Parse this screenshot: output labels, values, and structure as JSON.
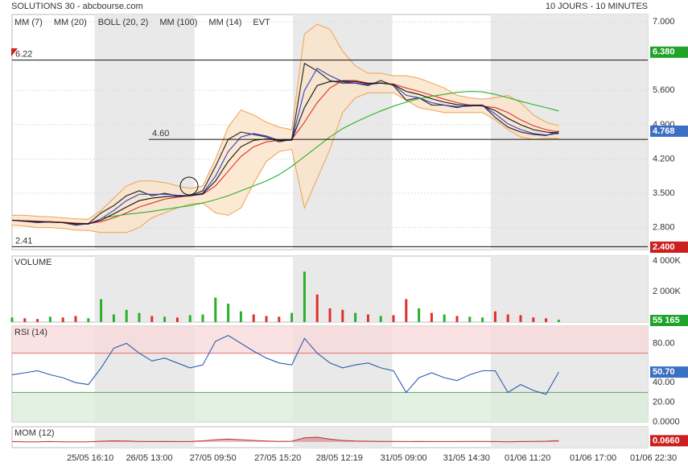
{
  "header": {
    "title": "SOLUTIONS 30 - abcbourse.com",
    "period": "10 JOURS - 10 MINUTES"
  },
  "chart_data": [
    {
      "type": "line",
      "events_label": "EVT",
      "xlim": [
        0,
        100
      ],
      "ylim": [
        2.35,
        7.15
      ],
      "yticks": [
        {
          "value": 7,
          "label": "7.000"
        },
        {
          "value": 5.6,
          "label": "5.600"
        },
        {
          "value": 4.9,
          "label": "4.900"
        },
        {
          "value": 4.2,
          "label": "4.200"
        },
        {
          "value": 3.5,
          "label": "3.500"
        },
        {
          "value": 2.8,
          "label": "2.800"
        }
      ],
      "grid": true,
      "shaded": [
        [
          13,
          28.7
        ],
        [
          44.2,
          59.8
        ],
        [
          75.3,
          100
        ]
      ],
      "x": [
        0,
        2,
        4,
        6,
        8,
        10,
        12,
        14,
        16,
        18,
        20,
        22,
        24,
        26,
        28,
        30,
        32,
        34,
        36,
        38,
        40,
        42,
        44,
        46,
        48,
        50,
        52,
        54,
        56,
        58,
        60,
        62,
        64,
        66,
        68,
        70,
        72,
        74,
        76,
        78,
        80,
        82,
        84,
        86
      ],
      "close": {
        "color": "#3a3a3a",
        "values": [
          2.95,
          2.93,
          2.9,
          2.92,
          2.9,
          2.85,
          2.88,
          3.1,
          3.25,
          3.45,
          3.55,
          3.45,
          3.5,
          3.45,
          3.45,
          3.55,
          4.05,
          4.6,
          4.75,
          4.7,
          4.65,
          4.55,
          4.6,
          6.15,
          6.0,
          5.8,
          5.75,
          5.75,
          5.7,
          5.8,
          5.7,
          5.4,
          5.45,
          5.3,
          5.3,
          5.25,
          5.3,
          5.3,
          5.05,
          4.85,
          4.75,
          4.7,
          4.68,
          4.77
        ]
      },
      "series": [
        {
          "name": "MM (7)",
          "color": "#2b3fcf",
          "values": [
            2.95,
            2.93,
            2.91,
            2.91,
            2.9,
            2.87,
            2.87,
            2.98,
            3.15,
            3.35,
            3.48,
            3.48,
            3.48,
            3.46,
            3.45,
            3.5,
            3.85,
            4.35,
            4.65,
            4.72,
            4.67,
            4.58,
            4.58,
            5.6,
            6.05,
            5.9,
            5.78,
            5.75,
            5.72,
            5.75,
            5.72,
            5.5,
            5.45,
            5.35,
            5.3,
            5.27,
            5.28,
            5.3,
            5.12,
            4.92,
            4.8,
            4.72,
            4.69,
            4.72
          ]
        },
        {
          "name": "MM (20)",
          "color": "#e0302a",
          "values": [
            2.95,
            2.94,
            2.93,
            2.92,
            2.91,
            2.89,
            2.88,
            2.92,
            3.0,
            3.1,
            3.22,
            3.3,
            3.38,
            3.42,
            3.45,
            3.48,
            3.65,
            3.95,
            4.25,
            4.45,
            4.55,
            4.58,
            4.6,
            4.95,
            5.35,
            5.65,
            5.8,
            5.8,
            5.75,
            5.75,
            5.73,
            5.65,
            5.58,
            5.5,
            5.42,
            5.35,
            5.3,
            5.28,
            5.25,
            5.15,
            5.0,
            4.88,
            4.8,
            4.75
          ]
        },
        {
          "name": "BOLL (20, 2)",
          "color": "#f0a050",
          "fill": "#fbe3c8",
          "upper": [
            3.05,
            3.05,
            3.03,
            3.02,
            3.0,
            2.98,
            2.97,
            3.15,
            3.4,
            3.65,
            3.75,
            3.75,
            3.72,
            3.65,
            3.6,
            3.65,
            4.2,
            4.85,
            5.2,
            5.1,
            4.95,
            4.85,
            4.8,
            6.75,
            6.95,
            6.85,
            6.4,
            6.1,
            5.95,
            5.95,
            5.9,
            5.9,
            5.85,
            5.75,
            5.65,
            5.5,
            5.45,
            5.42,
            5.45,
            5.5,
            5.35,
            5.1,
            4.95,
            4.88
          ],
          "lower": [
            2.85,
            2.83,
            2.8,
            2.8,
            2.78,
            2.75,
            2.74,
            2.7,
            2.7,
            2.7,
            2.8,
            3.0,
            3.1,
            3.2,
            3.28,
            3.3,
            3.1,
            3.05,
            3.2,
            3.7,
            4.15,
            4.35,
            4.4,
            3.2,
            3.8,
            4.4,
            5.15,
            5.45,
            5.55,
            5.55,
            5.55,
            5.4,
            5.25,
            5.2,
            5.15,
            5.15,
            5.15,
            5.15,
            5.0,
            4.8,
            4.65,
            4.6,
            4.62,
            4.62
          ]
        },
        {
          "name": "MM (100)",
          "color": "#2bb02b",
          "values": [
            null,
            null,
            null,
            null,
            null,
            null,
            null,
            3.0,
            3.03,
            3.07,
            3.1,
            3.13,
            3.17,
            3.21,
            3.25,
            3.3,
            3.37,
            3.45,
            3.55,
            3.65,
            3.75,
            3.88,
            4.05,
            4.25,
            4.45,
            4.65,
            4.82,
            4.95,
            5.07,
            5.18,
            5.28,
            5.36,
            5.43,
            5.48,
            5.52,
            5.56,
            5.58,
            5.57,
            5.52,
            5.45,
            5.38,
            5.31,
            5.25,
            5.18
          ]
        },
        {
          "name": "MM (14)",
          "color": "#111111",
          "values": [
            2.95,
            2.93,
            2.92,
            2.91,
            2.9,
            2.88,
            2.88,
            2.95,
            3.08,
            3.22,
            3.35,
            3.4,
            3.43,
            3.44,
            3.45,
            3.49,
            3.75,
            4.15,
            4.45,
            4.58,
            4.61,
            4.58,
            4.59,
            5.25,
            5.7,
            5.78,
            5.79,
            5.78,
            5.74,
            5.75,
            5.72,
            5.58,
            5.52,
            5.43,
            5.36,
            5.31,
            5.29,
            5.29,
            5.19,
            5.03,
            4.9,
            4.8,
            4.75,
            4.73
          ]
        }
      ],
      "levels": [
        {
          "value": 6.22,
          "label": "6.22"
        },
        {
          "value": 4.6,
          "label": "4.60"
        },
        {
          "value": 2.41,
          "label": "2.41"
        }
      ],
      "markers": [
        {
          "value": 6.38,
          "label": "6.380",
          "color": "#1fa32a"
        },
        {
          "value": 4.768,
          "label": "4.768",
          "color": "#3a6fc4"
        },
        {
          "value": 2.4,
          "label": "2.400",
          "color": "#cc2020"
        }
      ]
    },
    {
      "type": "bar",
      "title": "VOLUME",
      "xlim": [
        0,
        100
      ],
      "ylim": [
        0,
        4316
      ],
      "yticks": [
        {
          "value": 4000,
          "label": "4 000K"
        },
        {
          "value": 2000,
          "label": "2 000K"
        }
      ],
      "up_color": "#2bb02b",
      "down_color": "#e0302a",
      "x": [
        0,
        2,
        4,
        6,
        8,
        10,
        12,
        14,
        16,
        18,
        20,
        22,
        24,
        26,
        28,
        30,
        32,
        34,
        36,
        38,
        40,
        42,
        44,
        46,
        48,
        50,
        52,
        54,
        56,
        58,
        60,
        62,
        64,
        66,
        68,
        70,
        72,
        74,
        76,
        78,
        80,
        82,
        84,
        86
      ],
      "values": [
        300,
        250,
        200,
        350,
        300,
        400,
        250,
        1500,
        500,
        800,
        600,
        400,
        350,
        300,
        450,
        500,
        1600,
        1200,
        700,
        500,
        400,
        350,
        600,
        3300,
        1800,
        900,
        800,
        600,
        500,
        400,
        450,
        1500,
        900,
        600,
        500,
        400,
        350,
        300,
        700,
        500,
        450,
        300,
        250,
        150
      ],
      "markers": [
        {
          "value": 55.165,
          "label": "55 165",
          "color": "#1fa32a"
        }
      ]
    },
    {
      "type": "line",
      "title": "RSI (14)",
      "xlim": [
        0,
        100
      ],
      "ylim": [
        0,
        97.5
      ],
      "yticks": [
        {
          "value": 80,
          "label": "80.00"
        },
        {
          "value": 40,
          "label": "40.00"
        },
        {
          "value": 20,
          "label": "20.00"
        },
        {
          "value": 0,
          "label": "0.0000"
        }
      ],
      "zones": [
        {
          "from": 70,
          "to": 97.5,
          "color": "#f8d8d8",
          "line": "#e07070"
        },
        {
          "from": 0,
          "to": 30,
          "color": "#d8ecd8",
          "line": "#60a060"
        }
      ],
      "color": "#2a5db0",
      "x": [
        0,
        2,
        4,
        6,
        8,
        10,
        12,
        14,
        16,
        18,
        20,
        22,
        24,
        26,
        28,
        30,
        32,
        34,
        36,
        38,
        40,
        42,
        44,
        46,
        48,
        50,
        52,
        54,
        56,
        58,
        60,
        62,
        64,
        66,
        68,
        70,
        72,
        74,
        76,
        78,
        80,
        82,
        84,
        86
      ],
      "values": [
        48,
        50,
        52,
        48,
        45,
        40,
        38,
        55,
        75,
        80,
        70,
        62,
        65,
        60,
        55,
        58,
        82,
        88,
        80,
        72,
        65,
        60,
        58,
        85,
        70,
        60,
        55,
        58,
        60,
        55,
        52,
        30,
        45,
        50,
        45,
        42,
        48,
        52,
        52,
        30,
        38,
        32,
        28,
        50.7
      ],
      "markers": [
        {
          "value": 50.7,
          "label": "50.70",
          "color": "#3a6fc4"
        }
      ]
    },
    {
      "type": "area",
      "title": "MOM (12)",
      "xlim": [
        0,
        100
      ],
      "ylim": [
        -0.3,
        0.8
      ],
      "color": "#c03030",
      "x": [
        0,
        2,
        4,
        6,
        8,
        10,
        12,
        14,
        16,
        18,
        20,
        22,
        24,
        26,
        28,
        30,
        32,
        34,
        36,
        38,
        40,
        42,
        44,
        46,
        48,
        50,
        52,
        54,
        56,
        58,
        60,
        62,
        64,
        66,
        68,
        70,
        72,
        74,
        76,
        78,
        80,
        82,
        84,
        86
      ],
      "values": [
        0.02,
        0.01,
        0.01,
        0.02,
        0.01,
        0.01,
        0.01,
        0.04,
        0.06,
        0.05,
        0.03,
        0.02,
        0.03,
        0.02,
        0.02,
        0.06,
        0.12,
        0.15,
        0.12,
        0.08,
        0.05,
        0.03,
        0.04,
        0.22,
        0.25,
        0.15,
        0.08,
        0.05,
        0.04,
        0.03,
        0.03,
        0.02,
        0.03,
        0.02,
        0.02,
        0.02,
        0.03,
        0.03,
        0.02,
        0.01,
        0.02,
        0.03,
        0.04,
        0.066
      ],
      "xticks": [
        {
          "value": 12.3,
          "label": "25/05 16:10"
        },
        {
          "value": 21.6,
          "label": "26/05 13:00"
        },
        {
          "value": 31.6,
          "label": "27/05 09:50"
        },
        {
          "value": 41.8,
          "label": "27/05 15:20"
        },
        {
          "value": 51.5,
          "label": "28/05 12:19"
        },
        {
          "value": 61.6,
          "label": "31/05 09:00"
        },
        {
          "value": 71.5,
          "label": "31/05 14:30"
        },
        {
          "value": 81.1,
          "label": "01/06 11:20"
        },
        {
          "value": 91.4,
          "label": "01/06 17:00"
        },
        {
          "value": 100.9,
          "label": "01/06 22:30"
        }
      ],
      "markers": [
        {
          "value": 0.066,
          "label": "0.0660",
          "color": "#cc2020"
        }
      ]
    }
  ]
}
